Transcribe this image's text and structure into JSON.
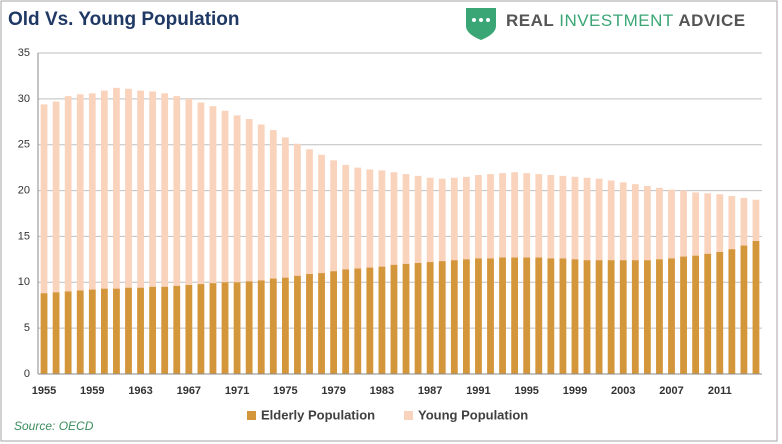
{
  "chart_data": {
    "type": "bar",
    "title": "Old Vs. Young Population",
    "brand": [
      "REAL",
      "INVESTMENT",
      "ADVICE"
    ],
    "source": "Source: OECD",
    "categories": [
      "1955",
      null,
      null,
      null,
      "1959",
      null,
      null,
      null,
      "1963",
      null,
      null,
      null,
      "1967",
      null,
      null,
      null,
      "1971",
      null,
      null,
      null,
      "1975",
      null,
      null,
      null,
      "1979",
      null,
      null,
      null,
      "1983",
      null,
      null,
      null,
      "1987",
      null,
      null,
      null,
      "1991",
      null,
      null,
      null,
      "1995",
      null,
      null,
      null,
      "1999",
      null,
      null,
      null,
      "2003",
      null,
      null,
      null,
      "2007",
      null,
      null,
      null,
      "2011",
      null,
      null,
      null
    ],
    "series": [
      {
        "name": "Elderly Population",
        "color": "#d4963a",
        "values": [
          8.8,
          8.9,
          9.0,
          9.1,
          9.2,
          9.3,
          9.3,
          9.4,
          9.4,
          9.5,
          9.5,
          9.6,
          9.7,
          9.8,
          9.9,
          10.0,
          10.0,
          10.1,
          10.2,
          10.4,
          10.5,
          10.7,
          10.9,
          11.0,
          11.2,
          11.4,
          11.5,
          11.6,
          11.7,
          11.9,
          12.0,
          12.1,
          12.2,
          12.3,
          12.4,
          12.5,
          12.6,
          12.6,
          12.7,
          12.7,
          12.7,
          12.7,
          12.6,
          12.6,
          12.5,
          12.4,
          12.4,
          12.4,
          12.4,
          12.4,
          12.4,
          12.5,
          12.6,
          12.8,
          12.9,
          13.1,
          13.3,
          13.6,
          14.0,
          14.5
        ]
      },
      {
        "name": "Young Population",
        "color": "#f9d3bc",
        "values": [
          29.4,
          29.7,
          30.3,
          30.5,
          30.6,
          30.9,
          31.2,
          31.1,
          30.9,
          30.8,
          30.6,
          30.3,
          30.0,
          29.6,
          29.2,
          28.7,
          28.2,
          27.8,
          27.2,
          26.6,
          25.8,
          25.1,
          24.5,
          23.9,
          23.3,
          22.8,
          22.5,
          22.3,
          22.2,
          22.0,
          21.8,
          21.6,
          21.4,
          21.3,
          21.4,
          21.5,
          21.7,
          21.8,
          21.9,
          22.0,
          21.9,
          21.8,
          21.7,
          21.6,
          21.5,
          21.4,
          21.3,
          21.1,
          20.9,
          20.7,
          20.5,
          20.3,
          20.1,
          20.0,
          19.8,
          19.7,
          19.6,
          19.4,
          19.2,
          19.0
        ]
      }
    ],
    "ylim": [
      0,
      35
    ],
    "yticks": [
      0,
      5,
      10,
      15,
      20,
      25,
      30,
      35
    ],
    "grid": true
  }
}
